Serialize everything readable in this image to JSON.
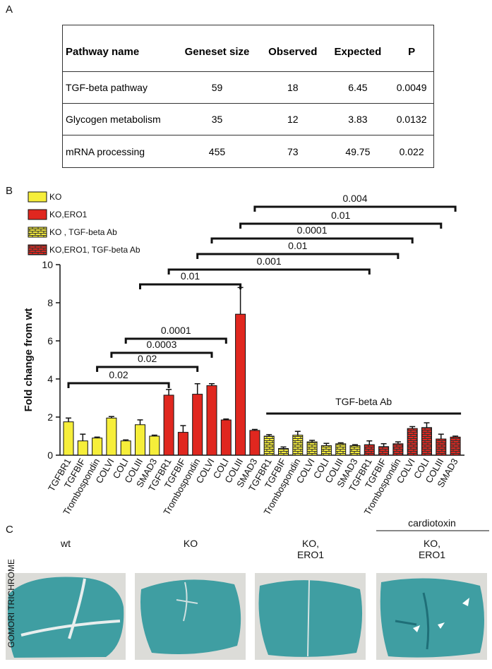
{
  "panel_labels": [
    "A",
    "B",
    "C"
  ],
  "table": {
    "header": [
      "Pathway name",
      "Geneset size",
      "Observed",
      "Expected",
      "P"
    ],
    "rows": [
      [
        "TGF-beta pathway",
        59,
        18,
        6.45,
        0.0049
      ],
      [
        "Glycogen metabolism",
        35,
        12,
        3.83,
        0.0132
      ],
      [
        "mRNA processing",
        455,
        73,
        49.75,
        0.022
      ]
    ]
  },
  "chart_data": {
    "type": "bar",
    "ylabel": "Fold change from wt",
    "categories": [
      "TGFBR1",
      "TGFBIF",
      "Trombospondin",
      "COLVI",
      "COLI",
      "COLIII",
      "SMAD3"
    ],
    "series": [
      {
        "name": "KO",
        "color": "#f6ee3a",
        "hatch": false,
        "values": [
          1.75,
          0.75,
          0.9,
          1.95,
          0.75,
          1.6,
          1.0
        ],
        "errors": [
          0.2,
          0.35,
          0.05,
          0.08,
          0.05,
          0.25,
          0.05
        ]
      },
      {
        "name": "KO,ERO1",
        "color": "#e0271f",
        "hatch": false,
        "values": [
          3.15,
          1.2,
          3.2,
          3.65,
          1.85,
          7.4,
          1.3
        ],
        "errors": [
          0.3,
          0.35,
          0.55,
          0.1,
          0.05,
          1.4,
          0.05
        ]
      },
      {
        "name": "KO , TGF-beta Ab",
        "color": "#f6ee3a",
        "hatch": true,
        "values": [
          1.0,
          0.35,
          1.05,
          0.7,
          0.5,
          0.6,
          0.5
        ],
        "errors": [
          0.08,
          0.08,
          0.2,
          0.08,
          0.12,
          0.05,
          0.05
        ]
      },
      {
        "name": "KO,ERO1, TGF-beta Ab",
        "color": "#e0271f",
        "hatch": true,
        "values": [
          0.55,
          0.45,
          0.6,
          1.4,
          1.45,
          0.85,
          0.95
        ],
        "errors": [
          0.2,
          0.15,
          0.1,
          0.1,
          0.25,
          0.25,
          0.05
        ]
      }
    ],
    "ylim": [
      0,
      10
    ],
    "yticks": [
      0,
      2,
      4,
      6,
      8,
      10
    ],
    "significance": [
      "0.02",
      "0.02",
      "0.0003",
      "0.0001",
      "0.01",
      "0.001",
      "0.01",
      "0.0001",
      "0.01",
      "0.004"
    ],
    "group_label": "TGF-beta Ab"
  },
  "histology": {
    "stain": "GOMORI TRICHROME",
    "treatment": "cardiotoxin",
    "panels": [
      "wt",
      "KO",
      "KO,\nERO1",
      "KO,\nERO1"
    ]
  }
}
